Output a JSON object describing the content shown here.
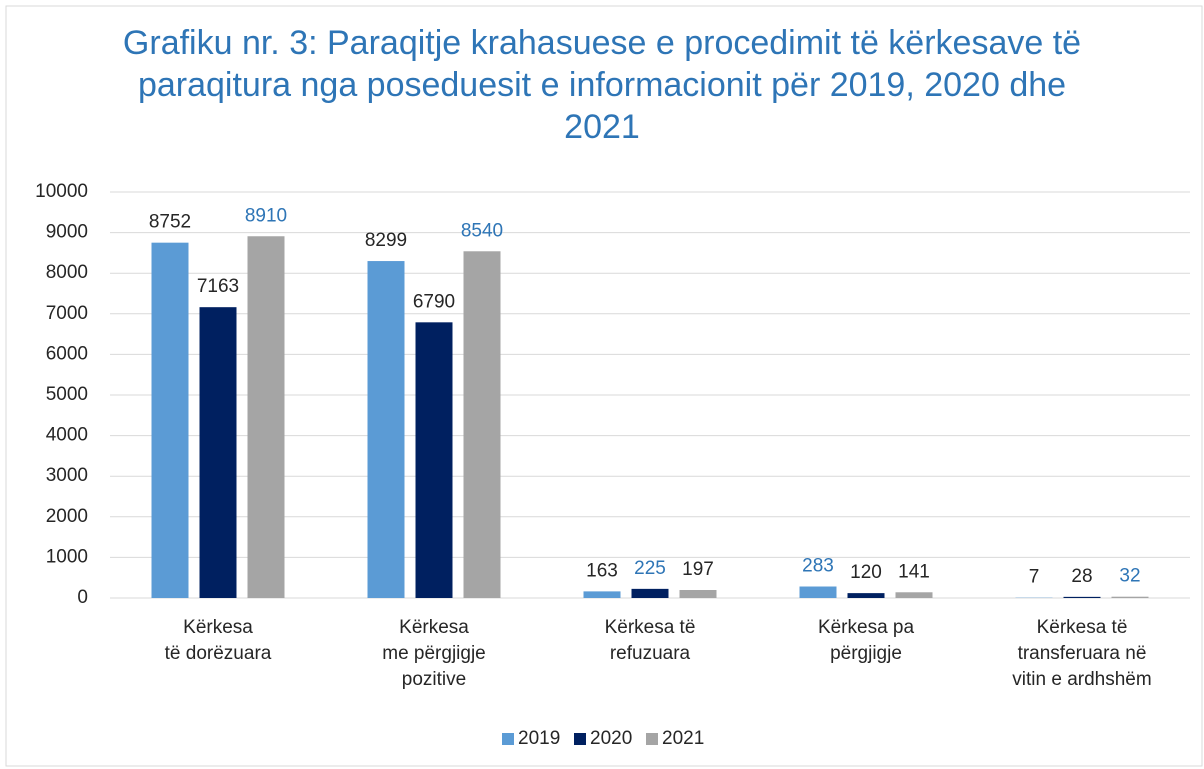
{
  "chart_data": {
    "type": "bar",
    "title": "Grafiku nr. 3: Paraqitje krahasuese e procedimit të kërkesave të paraqitura nga poseduesit e informacionit për 2019, 2020 dhe 2021",
    "categories": [
      [
        "Kërkesa",
        "të dorëzuara"
      ],
      [
        "Kërkesa",
        "me përgjigje",
        "pozitive"
      ],
      [
        "Kërkesa të",
        "refuzuara"
      ],
      [
        "Kërkesa pa",
        "përgjigje"
      ],
      [
        "Kërkesa të",
        "transferuara në",
        "vitin e ardhshëm"
      ]
    ],
    "series": [
      {
        "name": "2019",
        "color": "#5b9bd5",
        "values": [
          8752,
          8299,
          163,
          283,
          7
        ]
      },
      {
        "name": "2020",
        "color": "#002060",
        "values": [
          7163,
          6790,
          225,
          120,
          28
        ]
      },
      {
        "name": "2021",
        "color": "#a5a5a5",
        "values": [
          8910,
          8540,
          197,
          141,
          32
        ]
      }
    ],
    "highlight_color": "#2e75b6",
    "ylim": [
      0,
      10000
    ],
    "yticks": [
      0,
      1000,
      2000,
      3000,
      4000,
      5000,
      6000,
      7000,
      8000,
      9000,
      10000
    ],
    "grid": true,
    "legend": "bottom"
  }
}
